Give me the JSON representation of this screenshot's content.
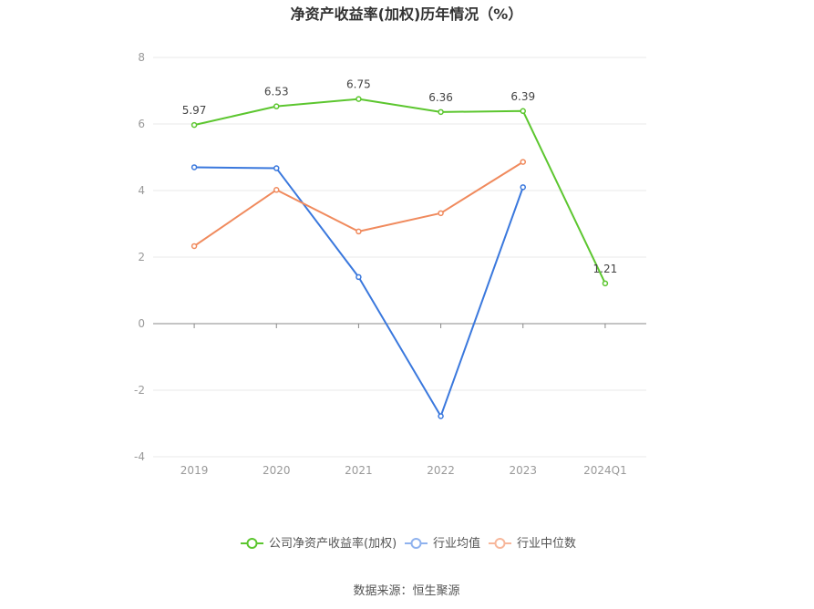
{
  "chart_data": {
    "type": "line",
    "title": "净资产收益率(加权)历年情况（%）",
    "categories": [
      "2019",
      "2020",
      "2021",
      "2022",
      "2023",
      "2024Q1"
    ],
    "yticks": [
      "8",
      "6",
      "4",
      "2",
      "0",
      "-2",
      "-4"
    ],
    "ylim": [
      -4,
      8
    ],
    "grid": true,
    "legend_position": "bottom",
    "series": [
      {
        "name": "公司净资产收益率(加权)",
        "color": "#5cc62f",
        "values": [
          5.97,
          6.53,
          6.75,
          6.36,
          6.39,
          1.21
        ],
        "labels": [
          "5.97",
          "6.53",
          "6.75",
          "6.36",
          "6.39",
          "1.21"
        ]
      },
      {
        "name": "行业均值",
        "color": "#3a78dd",
        "values": [
          4.7,
          4.67,
          1.4,
          -2.78,
          4.1,
          null
        ]
      },
      {
        "name": "行业中位数",
        "color": "#f08a5d",
        "values": [
          2.33,
          4.02,
          2.77,
          3.32,
          4.86,
          null
        ]
      }
    ],
    "source": "数据来源：恒生聚源"
  }
}
